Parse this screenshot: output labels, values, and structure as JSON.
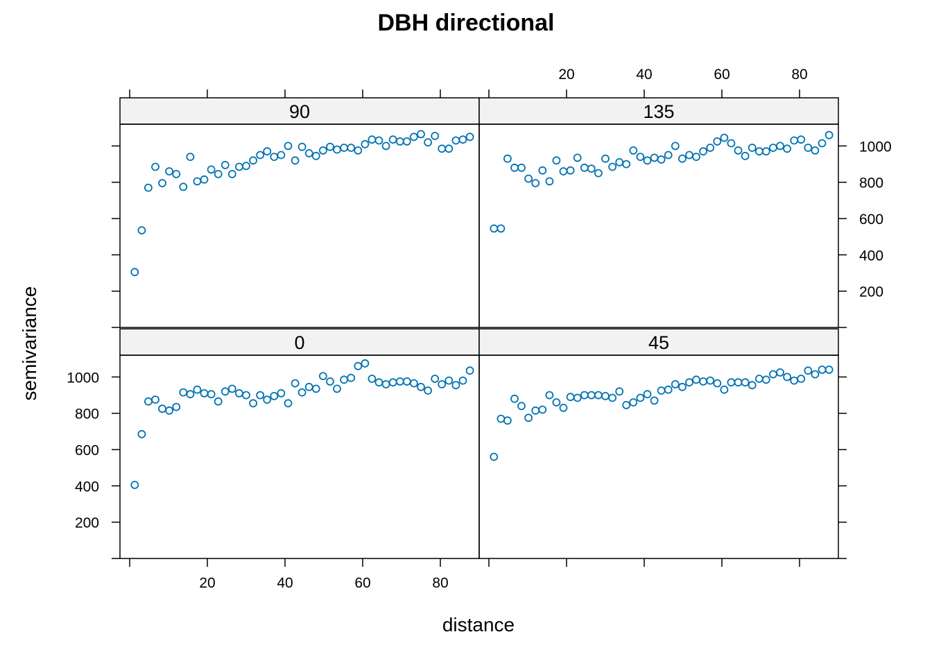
{
  "chart_data": {
    "type": "scatter",
    "title": "DBH directional",
    "xlabel": "distance",
    "ylabel": "semivariance",
    "xlim": [
      -2.5,
      90
    ],
    "ylim": [
      0,
      1120
    ],
    "x_ticks": [
      20,
      40,
      60,
      80
    ],
    "y_ticks": [
      200,
      400,
      600,
      800,
      1000
    ],
    "marker_color": "#0072B2",
    "strip_color": "#F2F2F2",
    "x": [
      1.3,
      3.1,
      4.8,
      6.6,
      8.4,
      10.2,
      12,
      13.8,
      15.6,
      17.4,
      19.2,
      21,
      22.8,
      24.6,
      26.4,
      28.2,
      30,
      31.8,
      33.6,
      35.4,
      37.2,
      39,
      40.8,
      42.6,
      44.4,
      46.2,
      48,
      49.8,
      51.6,
      53.4,
      55.2,
      57,
      58.8,
      60.6,
      62.4,
      64.2,
      66,
      67.8,
      69.6,
      71.4,
      73.2,
      75,
      76.8,
      78.6,
      80.4,
      82.2,
      84,
      85.8,
      87.6
    ],
    "panels": [
      {
        "label": "90",
        "values": [
          305,
          535,
          770,
          885,
          795,
          860,
          845,
          775,
          940,
          805,
          815,
          870,
          845,
          895,
          845,
          885,
          890,
          920,
          950,
          970,
          940,
          950,
          1000,
          920,
          995,
          960,
          945,
          975,
          995,
          980,
          990,
          990,
          975,
          1010,
          1035,
          1030,
          1000,
          1035,
          1025,
          1025,
          1050,
          1065,
          1020,
          1055,
          985,
          985,
          1030,
          1035,
          1050
        ]
      },
      {
        "label": "135",
        "values": [
          545,
          545,
          930,
          880,
          880,
          820,
          795,
          865,
          805,
          920,
          860,
          865,
          935,
          880,
          875,
          850,
          930,
          885,
          910,
          900,
          975,
          940,
          920,
          935,
          925,
          950,
          1000,
          930,
          950,
          940,
          970,
          990,
          1025,
          1045,
          1015,
          975,
          945,
          990,
          970,
          970,
          990,
          1000,
          985,
          1030,
          1035,
          990,
          975,
          1015,
          1060
        ]
      },
      {
        "label": "0",
        "values": [
          405,
          685,
          865,
          875,
          825,
          815,
          835,
          915,
          905,
          930,
          910,
          905,
          865,
          920,
          935,
          910,
          900,
          855,
          900,
          875,
          895,
          910,
          855,
          965,
          915,
          945,
          935,
          1005,
          975,
          935,
          985,
          995,
          1060,
          1075,
          990,
          970,
          960,
          970,
          975,
          975,
          965,
          945,
          925,
          990,
          960,
          980,
          955,
          980,
          1035
        ]
      },
      {
        "label": "45",
        "values": [
          560,
          770,
          760,
          880,
          840,
          775,
          815,
          820,
          900,
          860,
          830,
          890,
          885,
          900,
          900,
          900,
          895,
          885,
          920,
          845,
          860,
          885,
          905,
          870,
          925,
          930,
          960,
          945,
          970,
          985,
          975,
          980,
          965,
          930,
          970,
          970,
          970,
          955,
          990,
          985,
          1015,
          1025,
          1000,
          980,
          990,
          1035,
          1015,
          1040,
          1040
        ]
      }
    ]
  }
}
